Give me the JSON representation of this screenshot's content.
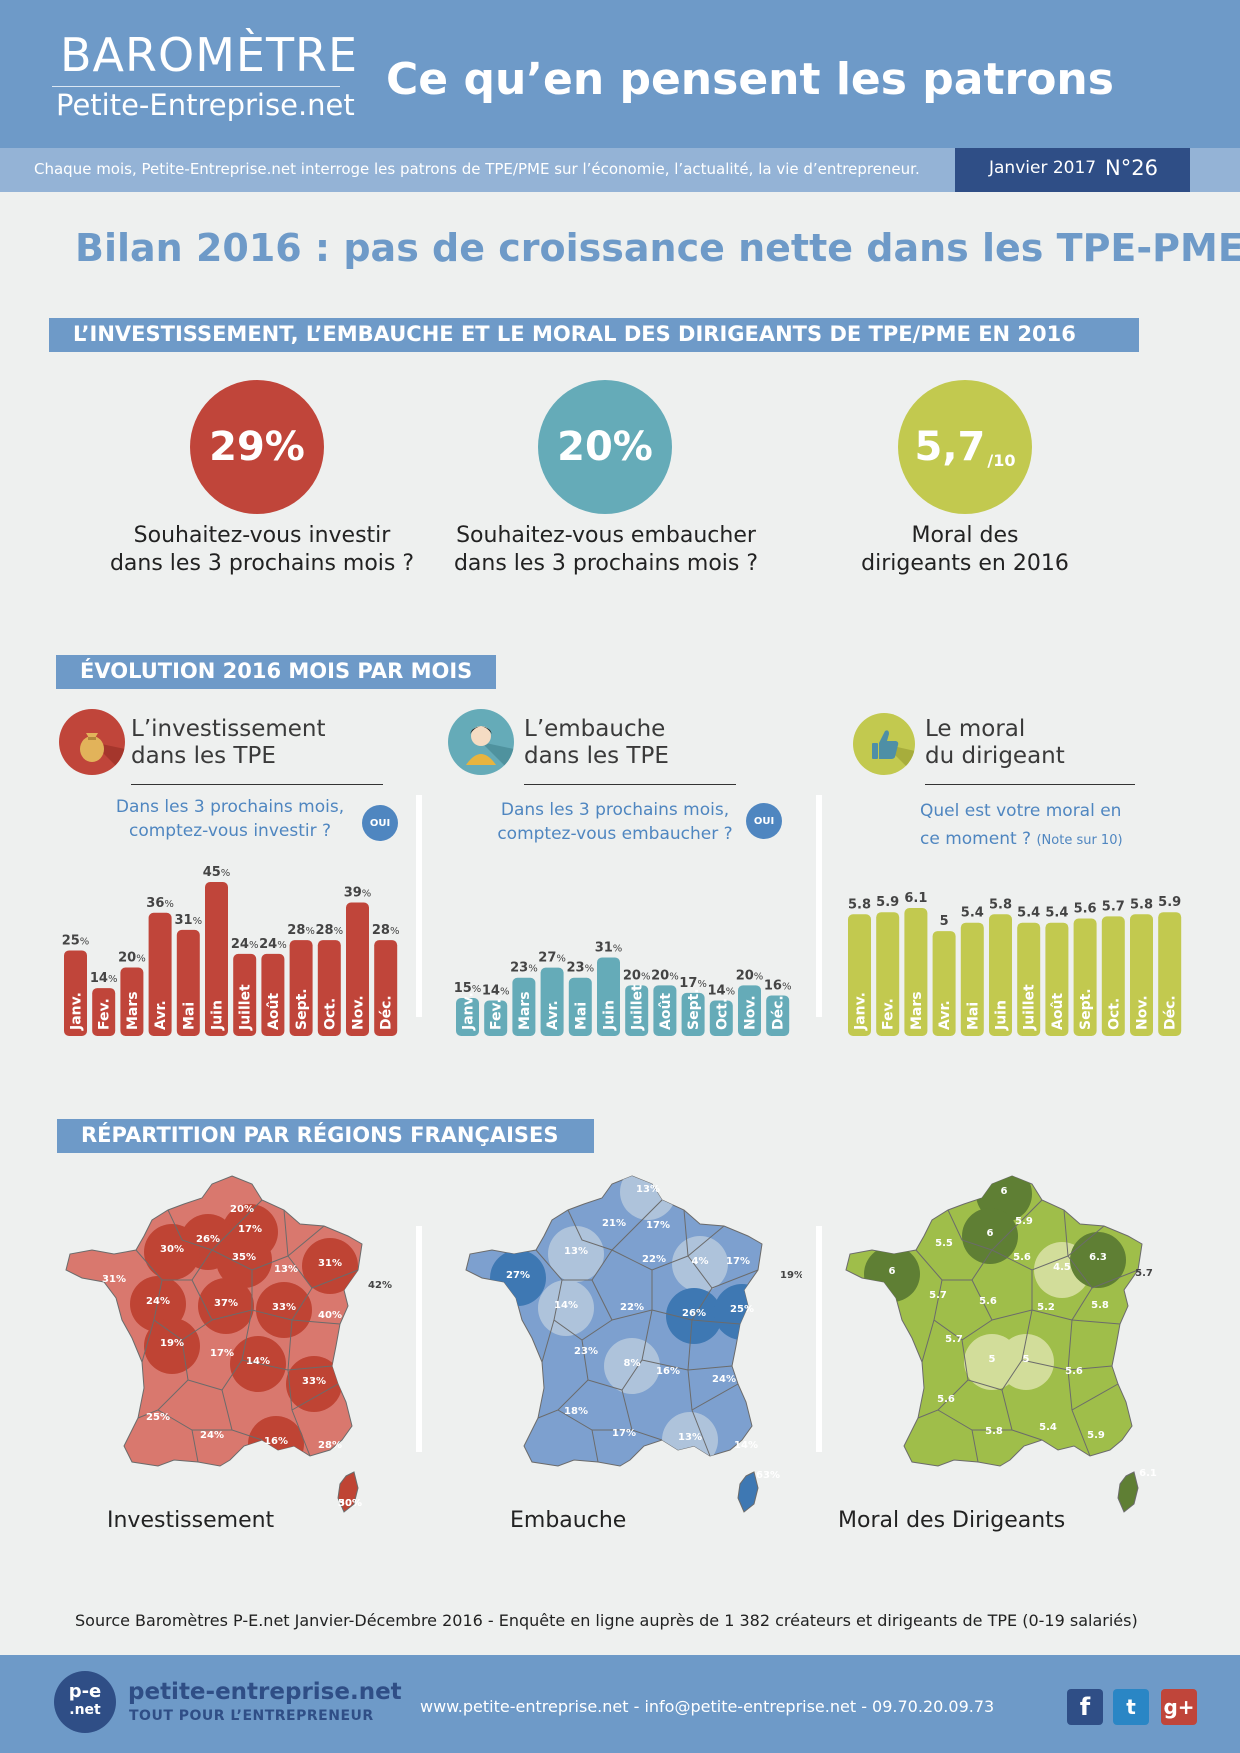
{
  "header": {
    "logo_top": "BAROMÈTRE",
    "logo_bottom": "Petite-Entreprise.net",
    "title": "Ce qu’en pensent les patrons",
    "subtitle": "Chaque mois, Petite-Entreprise.net interroge les patrons de TPE/PME sur l’économie, l’actualité, la vie d’entrepreneur.",
    "issue_date": "Janvier 2017",
    "issue_number": "N°26"
  },
  "main_title": "Bilan 2016 : pas de croissance nette dans les TPE-PME",
  "sections": {
    "kpis": "L’INVESTISSEMENT, L’EMBAUCHE ET LE MORAL DES DIRIGEANTS DE TPE/PME EN 2016",
    "evolution": "ÉVOLUTION 2016 MOIS PAR MOIS",
    "regions": "RÉPARTITION PAR RÉGIONS FRANÇAISES"
  },
  "kpis": [
    {
      "value": "29%",
      "suffix": "",
      "label_l1": "Souhaitez-vous investir",
      "label_l2": "dans les 3 prochains mois ?",
      "color": "#c0453a"
    },
    {
      "value": "20%",
      "suffix": "",
      "label_l1": "Souhaitez-vous embaucher",
      "label_l2": "dans les 3 prochains mois ?",
      "color": "#65abb8"
    },
    {
      "value": "5,7",
      "suffix": "/10",
      "label_l1": "Moral des",
      "label_l2": "dirigeants en 2016",
      "color": "#c2c94f"
    }
  ],
  "panels": [
    {
      "title_l1": "L’investissement",
      "title_l2": "dans les TPE",
      "q_l1": "Dans les 3 prochains mois,",
      "q_l2": "comptez-vous investir ?",
      "q_note": "",
      "badge": "OUI"
    },
    {
      "title_l1": "L’embauche",
      "title_l2": "dans les TPE",
      "q_l1": "Dans les 3 prochains mois,",
      "q_l2": "comptez-vous embaucher ?",
      "q_note": "",
      "badge": "OUI"
    },
    {
      "title_l1": "Le moral",
      "title_l2": "du dirigeant",
      "q_l1": "Quel est votre moral en",
      "q_l2": "ce moment ?",
      "q_note": "(Note sur 10)",
      "badge": ""
    }
  ],
  "chart_data": [
    {
      "type": "bar",
      "categories": [
        "Janv.",
        "Fev.",
        "Mars",
        "Avr.",
        "Mai",
        "Juin",
        "Juillet",
        "Août",
        "Sept.",
        "Oct.",
        "Nov.",
        "Déc."
      ],
      "values": [
        25,
        14,
        20,
        36,
        31,
        45,
        24,
        24,
        28,
        28,
        39,
        28
      ],
      "unit": "%",
      "color": "#c0453a",
      "ylim": [
        0,
        45
      ]
    },
    {
      "type": "bar",
      "categories": [
        "Janv.",
        "Fev.",
        "Mars",
        "Avr.",
        "Mai",
        "Juin",
        "Juillet",
        "Août",
        "Sept.",
        "Oct.",
        "Nov.",
        "Déc."
      ],
      "values": [
        15,
        14,
        23,
        27,
        23,
        31,
        20,
        20,
        17,
        14,
        20,
        16
      ],
      "unit": "%",
      "color": "#65abb8",
      "ylim": [
        0,
        45
      ]
    },
    {
      "type": "bar",
      "categories": [
        "Janv.",
        "Fev.",
        "Mars",
        "Avr.",
        "Mai",
        "Juin",
        "Juillet",
        "Août",
        "Sept.",
        "Oct.",
        "Nov.",
        "Déc."
      ],
      "values": [
        5.8,
        5.9,
        6.1,
        5,
        5.4,
        5.8,
        5.4,
        5.4,
        5.6,
        5.7,
        5.8,
        5.9
      ],
      "unit": "",
      "color": "#c2c94f",
      "ylim": [
        0,
        6.1
      ]
    }
  ],
  "maps": [
    {
      "label": "Investissement",
      "values": [
        "20%",
        "17%",
        "26%",
        "30%",
        "35%",
        "13%",
        "31%",
        "42%",
        "31%",
        "24%",
        "37%",
        "33%",
        "40%",
        "19%",
        "17%",
        "14%",
        "33%",
        "25%",
        "24%",
        "16%",
        "28%",
        "30%",
        "50%"
      ],
      "colors": {
        "base": "#d9786e",
        "dark": "#bf4434"
      }
    },
    {
      "label": "Embauche",
      "values": [
        "13%",
        "21%",
        "17%",
        "13%",
        "22%",
        "4%",
        "17%",
        "19%",
        "27%",
        "14%",
        "22%",
        "26%",
        "25%",
        "23%",
        "8%",
        "16%",
        "24%",
        "18%",
        "17%",
        "13%",
        "14%",
        "63%"
      ],
      "colors": {
        "base": "#7da0cf",
        "dark": "#3e78b3",
        "light": "#aec3db"
      }
    },
    {
      "label": "Moral des Dirigeants",
      "values": [
        "6",
        "5.9",
        "6",
        "5.5",
        "5.6",
        "4.5",
        "6.3",
        "5.7",
        "6",
        "5.7",
        "5.6",
        "5.2",
        "5.8",
        "5.7",
        "5",
        "5",
        "5.6",
        "5.6",
        "5.8",
        "5.4",
        "5.9",
        "6.1"
      ],
      "colors": {
        "base": "#9fbe4a",
        "dark": "#5f7f34",
        "light": "#d2dd9a"
      }
    }
  ],
  "source": "Source Baromètres P-E.net Janvier-Décembre 2016 - Enquête en ligne auprès de 1 382 créateurs et dirigeants de TPE (0-19 salariés)",
  "footer": {
    "badge_l1": "p-e",
    "badge_l2": ".net",
    "brand": "petite-entreprise.net",
    "tagline": "TOUT POUR L’ENTREPRENEUR",
    "contact": "www.petite-entreprise.net - info@petite-entreprise.net - 09.70.20.09.73",
    "social": [
      "f",
      "t",
      "g+"
    ]
  }
}
